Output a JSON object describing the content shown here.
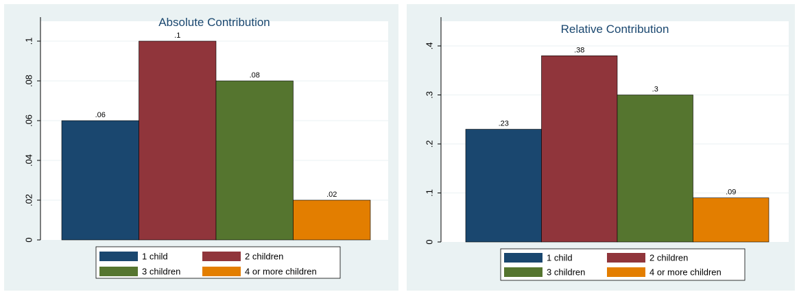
{
  "chart_data": [
    {
      "type": "bar",
      "title": "Absolute Contribution",
      "xlabel": "",
      "ylabel": "",
      "ylim": [
        0,
        0.1
      ],
      "yticks": [
        0,
        0.02,
        0.04,
        0.06,
        0.08,
        0.1
      ],
      "ytick_labels": [
        "0",
        ".02",
        ".04",
        ".06",
        ".08",
        ".1"
      ],
      "grid": "horizontal",
      "legend_position": "bottom",
      "series": [
        {
          "name": "1 child",
          "value": 0.06,
          "label": ".06",
          "color": "#1a476f"
        },
        {
          "name": "2 children",
          "value": 0.1,
          "label": ".1",
          "color": "#90353b"
        },
        {
          "name": "3 children",
          "value": 0.08,
          "label": ".08",
          "color": "#55752f"
        },
        {
          "name": "4 or more children",
          "value": 0.02,
          "label": ".02",
          "color": "#e37e00"
        }
      ]
    },
    {
      "type": "bar",
      "title": "Relative Contribution",
      "xlabel": "",
      "ylabel": "",
      "ylim": [
        0,
        0.4
      ],
      "yticks": [
        0,
        0.1,
        0.2,
        0.3,
        0.4
      ],
      "ytick_labels": [
        "0",
        ".1",
        ".2",
        ".3",
        ".4"
      ],
      "grid": "horizontal",
      "legend_position": "bottom",
      "series": [
        {
          "name": "1 child",
          "value": 0.23,
          "label": ".23",
          "color": "#1a476f"
        },
        {
          "name": "2 children",
          "value": 0.38,
          "label": ".38",
          "color": "#90353b"
        },
        {
          "name": "3 children",
          "value": 0.3,
          "label": ".3",
          "color": "#55752f"
        },
        {
          "name": "4 or more children",
          "value": 0.09,
          "label": ".09",
          "color": "#e37e00"
        }
      ]
    }
  ],
  "colors": {
    "outer_background": "#eaf2f3",
    "plot_background": "#ffffff",
    "grid": "#eaf2f3"
  }
}
